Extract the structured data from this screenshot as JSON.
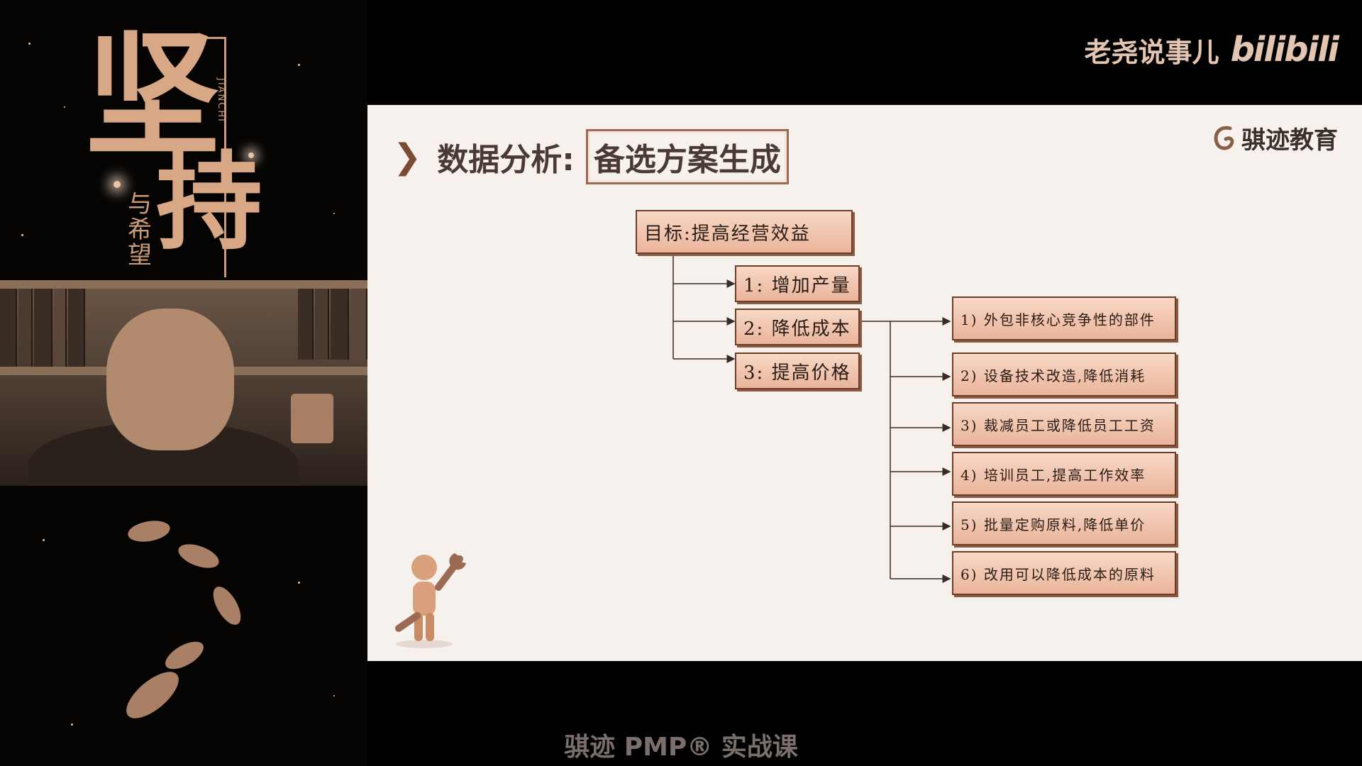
{
  "poster": {
    "title_char_1": "坚",
    "title_char_2": "持",
    "subtitle": "与希望",
    "pinyin": "JIANCHI"
  },
  "watermark": {
    "channel_name": "老尧说事儿",
    "platform_logo": "bilibili"
  },
  "slide": {
    "heading_prefix": "数据分析:",
    "heading_boxed": "备选方案生成",
    "brand": "骐迹教育",
    "goal": "目标:提高经营效益",
    "options": [
      "1: 增加产量",
      "2: 降低成本",
      "3: 提高价格"
    ],
    "sub_options": [
      "1) 外包非核心竞争性的部件",
      "2) 设备技术改造,降低消耗",
      "3) 裁减员工或降低员工工资",
      "4) 培训员工,提高工作效率",
      "5) 批量定购原料,降低单价",
      "6) 改用可以降低成本的原料"
    ]
  },
  "caption": "骐迹 PMP® 实战课",
  "colors": {
    "node_fill": "#eab49a",
    "node_border": "#6e3d28",
    "slide_bg": "#f7f1ee",
    "accent": "#e3c6b2"
  }
}
